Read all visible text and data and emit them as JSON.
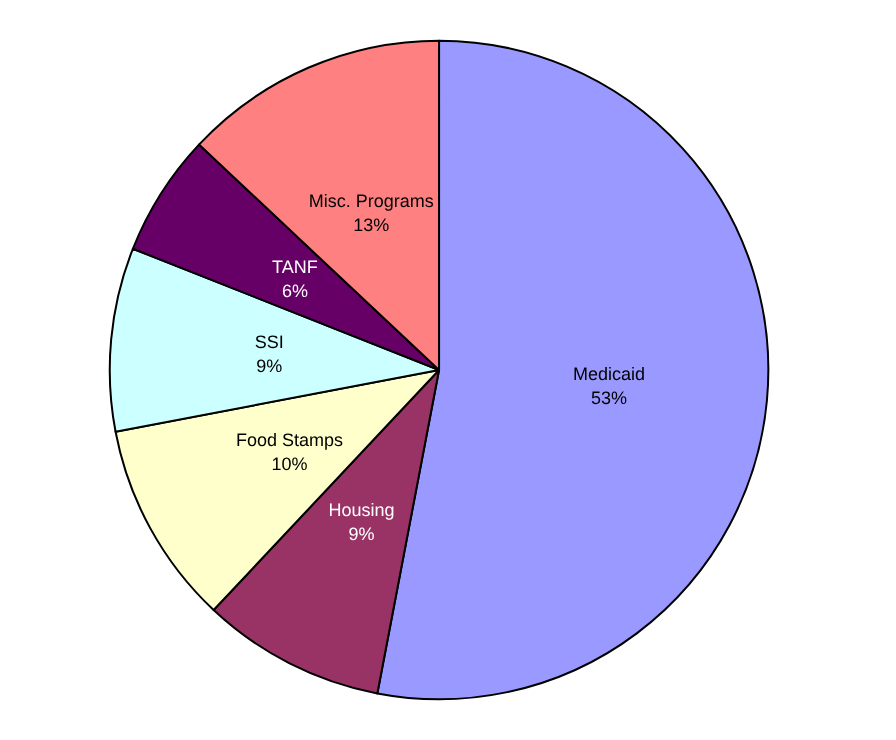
{
  "chart_data": {
    "type": "pie",
    "categories": [
      "Medicaid",
      "Housing",
      "Food Stamps",
      "SSI",
      "TANF",
      "Misc. Programs"
    ],
    "values": [
      53,
      9,
      10,
      9,
      6,
      13
    ],
    "value_labels": [
      "53%",
      "9%",
      "10%",
      "9%",
      "6%",
      "13%"
    ],
    "colors": [
      "#9999ff",
      "#993366",
      "#ffffcc",
      "#ccffff",
      "#660066",
      "#ff8080"
    ]
  }
}
